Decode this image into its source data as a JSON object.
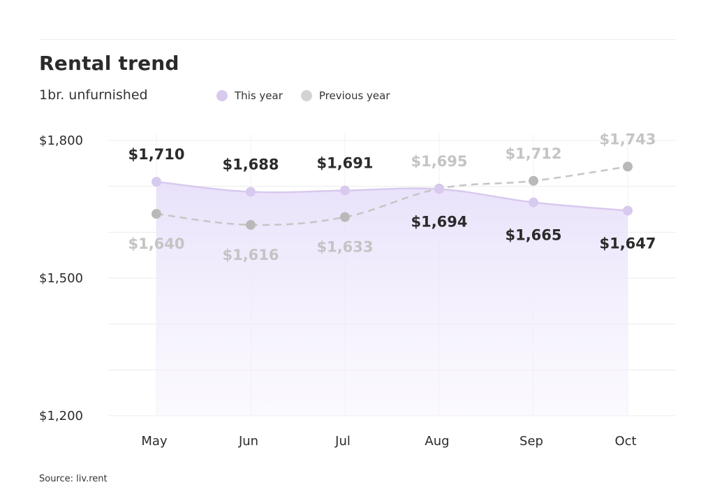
{
  "header": {
    "title": "Rental trend",
    "subtitle": "1br. unfurnished"
  },
  "legend": [
    {
      "label": "This year",
      "color": "#d8c9ee"
    },
    {
      "label": "Previous year",
      "color": "#d3d3d3"
    }
  ],
  "source": "Source: liv.rent",
  "chart_data": {
    "type": "line",
    "categories": [
      "May",
      "Jun",
      "Jul",
      "Aug",
      "Sep",
      "Oct"
    ],
    "ylim": [
      1200,
      1800
    ],
    "yticks": [
      1200,
      1500,
      1800
    ],
    "ytick_labels": [
      "$1,200",
      "$1,500",
      "$1,800"
    ],
    "grid": true,
    "legend_position": "top",
    "series": [
      {
        "name": "This year",
        "values": [
          1710,
          1688,
          1691,
          1694,
          1665,
          1647
        ],
        "labels": [
          "$1,710",
          "$1,688",
          "$1,691",
          "$1,694",
          "$1,665",
          "$1,647"
        ],
        "color": "#d8c9ee",
        "fill": "#ebe5fb",
        "style": "solid"
      },
      {
        "name": "Previous year",
        "values": [
          1640,
          1616,
          1633,
          1695,
          1712,
          1743
        ],
        "labels": [
          "$1,640",
          "$1,616",
          "$1,633",
          "$1,695",
          "$1,712",
          "$1,743"
        ],
        "color": "#c6c6c6",
        "style": "dashed"
      }
    ]
  }
}
